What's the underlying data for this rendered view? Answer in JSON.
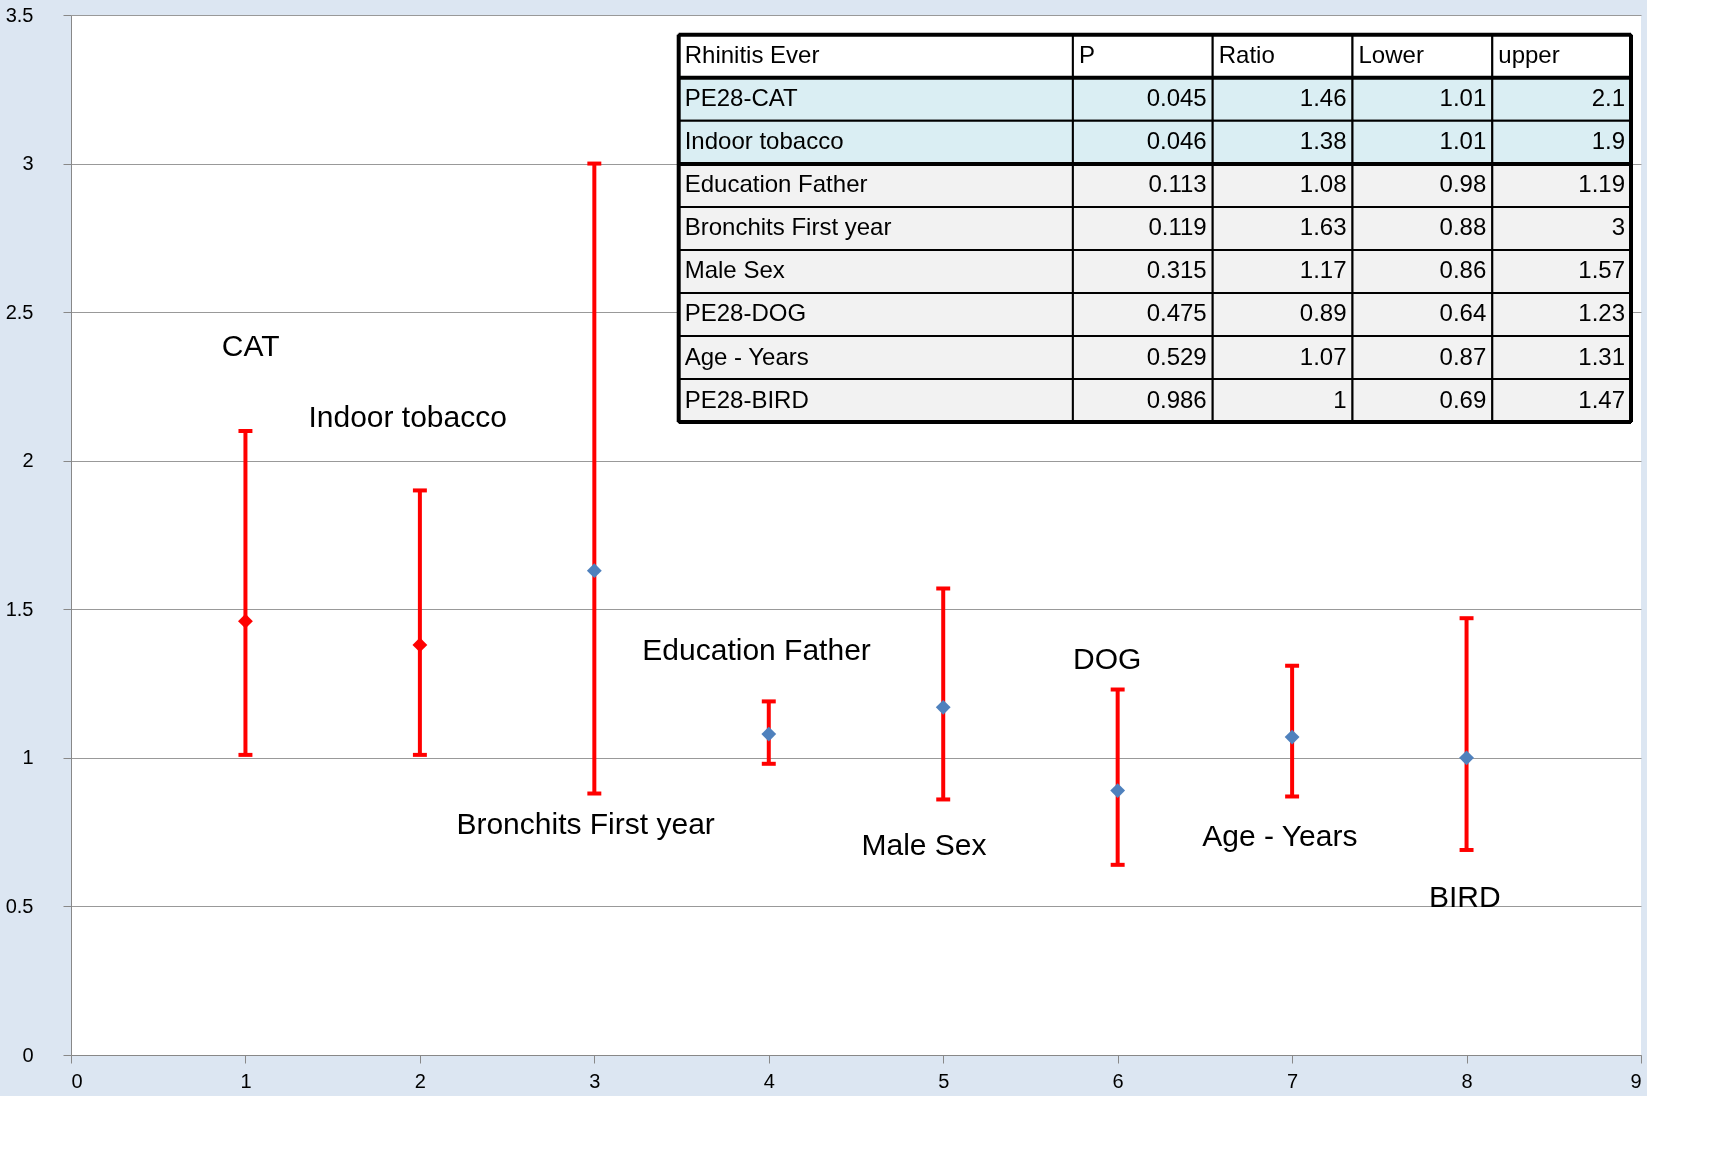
{
  "chart_data": [
    {
      "type": "scatter",
      "x": [
        1,
        2,
        3,
        4,
        5,
        6,
        7,
        8
      ],
      "values": [
        1.46,
        1.38,
        1.63,
        1.08,
        1.17,
        0.89,
        1.07,
        1
      ],
      "colors": [
        "#ff0000",
        "#ff0000",
        "#4f81bd",
        "#4f81bd",
        "#4f81bd",
        "#4f81bd",
        "#4f81bd",
        "#4f81bd"
      ],
      "errors": [
        [
          1.01,
          2.1
        ],
        [
          1.01,
          1.9
        ],
        [
          0.88,
          3
        ],
        [
          0.98,
          1.19
        ],
        [
          0.86,
          1.57
        ],
        [
          0.64,
          1.23
        ],
        [
          0.87,
          1.31
        ],
        [
          0.69,
          1.47
        ]
      ],
      "marker": "diamond",
      "xlim": [
        0,
        9
      ],
      "xticks": [
        0,
        1,
        2,
        3,
        4,
        5,
        6,
        7,
        8,
        9
      ],
      "ylim": [
        0,
        3.5
      ],
      "yticks": [
        0,
        0.5,
        1,
        1.5,
        2,
        2.5,
        3,
        3.5
      ],
      "grid": "y",
      "annotations": [
        "CAT",
        "Indoor tobacco",
        "Bronchits First year",
        "Education Father",
        "Male Sex",
        "DOG",
        "Age - Years",
        "BIRD"
      ]
    },
    {
      "type": "other",
      "title": "Rhinitis Ever",
      "categories": [
        "P",
        "Ratio",
        "Lower",
        "upper"
      ],
      "y_categories": [
        "PE28-CAT",
        "Indoor tobacco",
        "Education Father",
        "Bronchits First year",
        "Male Sex",
        "PE28-DOG",
        "Age - Years",
        "PE28-BIRD"
      ],
      "colors": [
        "#daeef3",
        "#daeef3",
        "#f2f2f2",
        "#f2f2f2",
        "#f2f2f2",
        "#f2f2f2",
        "#f2f2f2",
        "#f2f2f2"
      ],
      "cell_labels": [
        [
          "0.045",
          "1.46",
          "1.01",
          "2.1"
        ],
        [
          "0.046",
          "1.38",
          "1.01",
          "1.9"
        ],
        [
          "0.113",
          "1.08",
          "0.98",
          "1.19"
        ],
        [
          "0.119",
          "1.63",
          "0.88",
          "3"
        ],
        [
          "0.315",
          "1.17",
          "0.86",
          "1.57"
        ],
        [
          "0.475",
          "0.89",
          "0.64",
          "1.23"
        ],
        [
          "0.529",
          "1.07",
          "0.87",
          "1.31"
        ],
        [
          "0.986",
          "1",
          "0.69",
          "1.47"
        ]
      ]
    }
  ]
}
